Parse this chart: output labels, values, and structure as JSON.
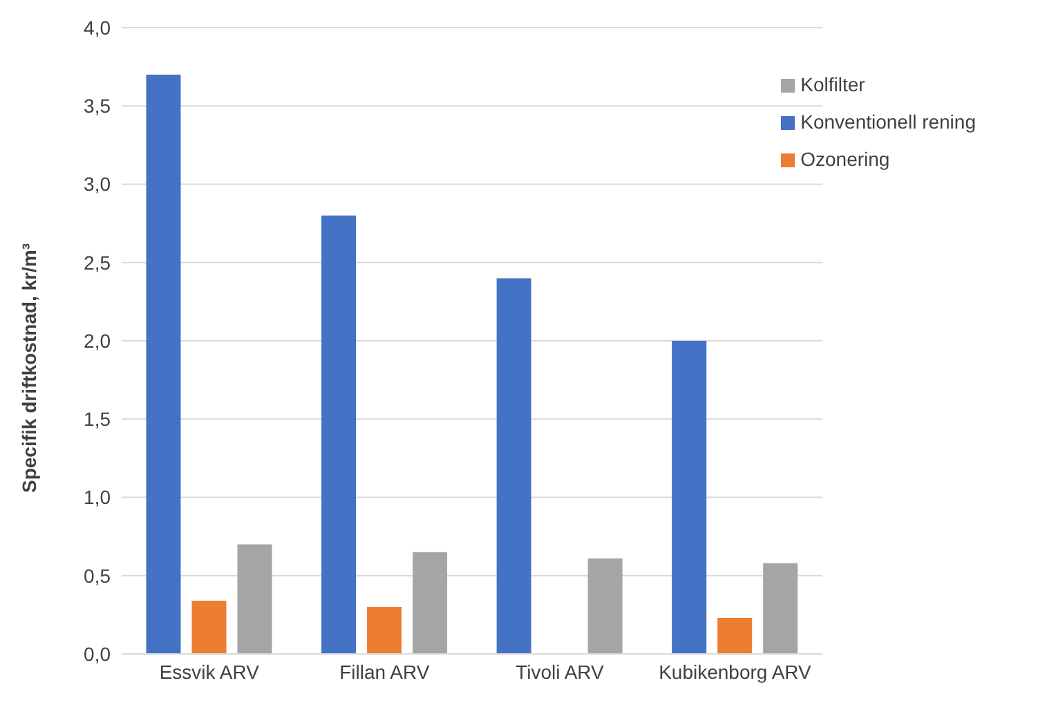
{
  "chart_data": {
    "type": "bar",
    "ylabel": "Specifik driftkostnad, kr/m³",
    "categories": [
      "Essvik ARV",
      "Fillan ARV",
      "Tivoli ARV",
      "Kubikenborg ARV"
    ],
    "series": [
      {
        "name": "Konventionell rening",
        "color": "#4472c4",
        "values": [
          3.7,
          2.8,
          2.4,
          2.0
        ]
      },
      {
        "name": "Ozonering",
        "color": "#ed7d31",
        "values": [
          0.34,
          0.3,
          null,
          0.23
        ]
      },
      {
        "name": "Kolfilter",
        "color": "#a5a5a5",
        "values": [
          0.7,
          0.65,
          0.61,
          0.58
        ]
      }
    ],
    "ylim": [
      0,
      4
    ],
    "yticks": [
      {
        "value": 0,
        "label": "0,0"
      },
      {
        "value": 0.5,
        "label": "0,5"
      },
      {
        "value": 1,
        "label": "1,0"
      },
      {
        "value": 1.5,
        "label": "1,5"
      },
      {
        "value": 2,
        "label": "2,0"
      },
      {
        "value": 2.5,
        "label": "2,5"
      },
      {
        "value": 3,
        "label": "3,0"
      },
      {
        "value": 3.5,
        "label": "3,5"
      },
      {
        "value": 4,
        "label": "4,0"
      }
    ],
    "grid": "y",
    "legend": "top right"
  }
}
